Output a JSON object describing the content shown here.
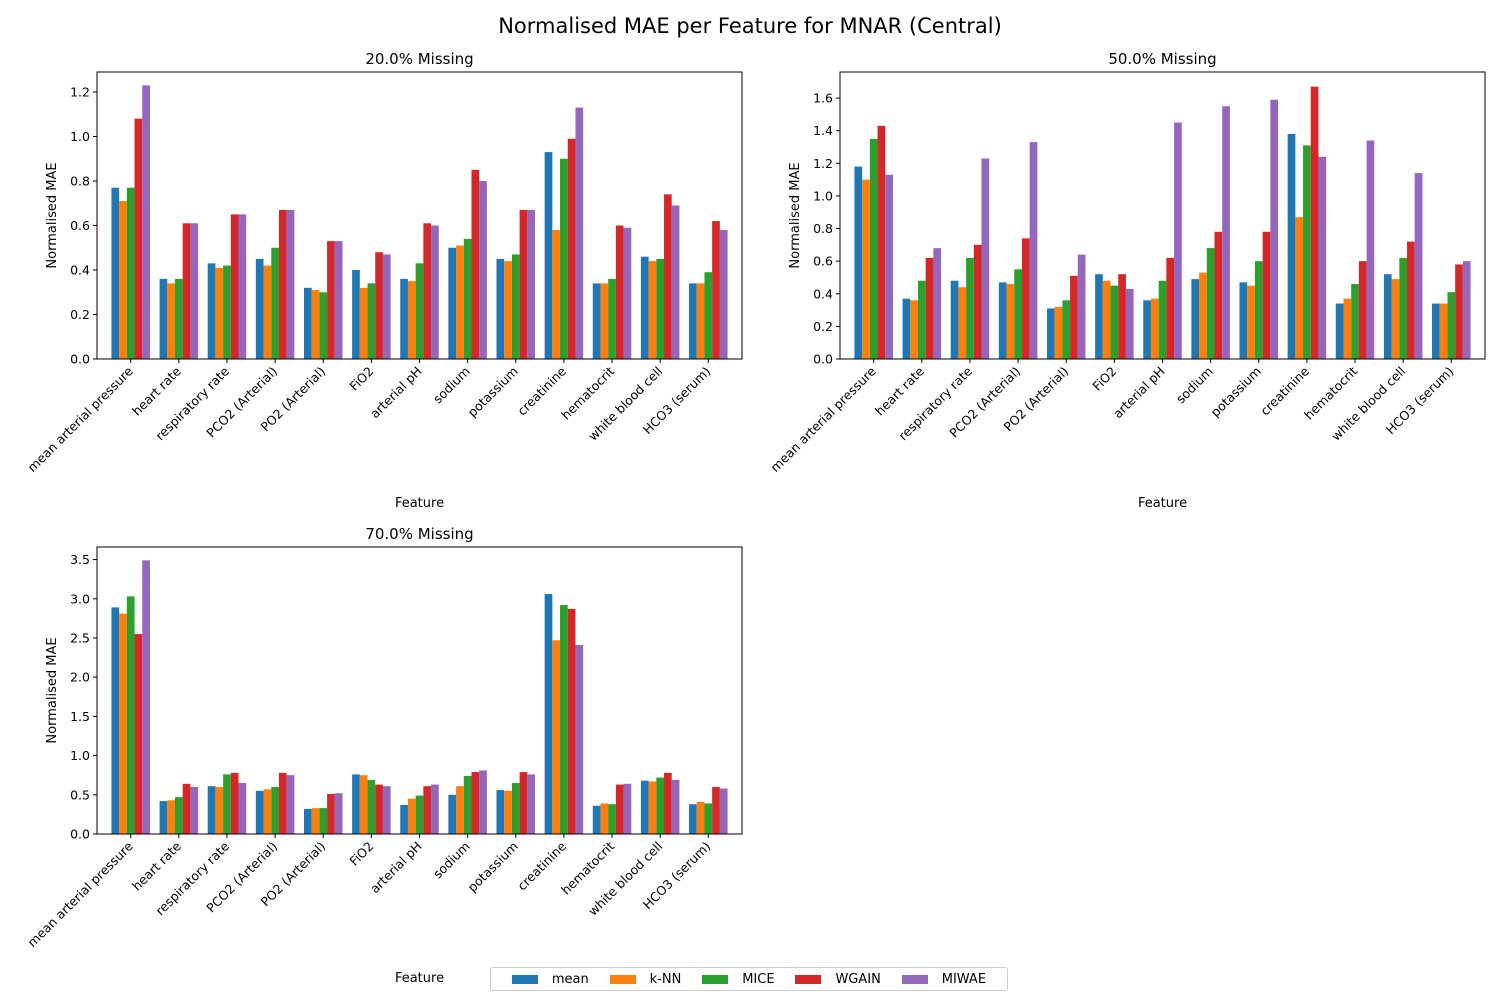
{
  "figure": {
    "title": "Normalised MAE per Feature for MNAR (Central)"
  },
  "colors": {
    "mean": "#1f77b4",
    "k-NN": "#ff7f0e",
    "MICE": "#2ca02c",
    "WGAIN": "#d62728",
    "MIWAE": "#9467bd"
  },
  "legend": [
    "mean",
    "k-NN",
    "MICE",
    "WGAIN",
    "MIWAE"
  ],
  "chart_data": [
    {
      "type": "bar",
      "title": "20.0% Missing",
      "xlabel": "Feature",
      "ylabel": "Normalised MAE",
      "ylim": [
        0,
        1.29
      ],
      "yticks": [
        0.0,
        0.2,
        0.4,
        0.6,
        0.8,
        1.0,
        1.2
      ],
      "categories": [
        "mean arterial pressure",
        "heart rate",
        "respiratory rate",
        "PCO2 (Arterial)",
        "PO2 (Arterial)",
        "FiO2",
        "arterial pH",
        "sodium",
        "potassium",
        "creatinine",
        "hematocrit",
        "white blood cell",
        "HCO3 (serum)"
      ],
      "series": [
        {
          "name": "mean",
          "values": [
            0.77,
            0.36,
            0.43,
            0.45,
            0.32,
            0.4,
            0.36,
            0.5,
            0.45,
            0.93,
            0.34,
            0.46,
            0.34
          ]
        },
        {
          "name": "k-NN",
          "values": [
            0.71,
            0.34,
            0.41,
            0.42,
            0.31,
            0.32,
            0.35,
            0.51,
            0.44,
            0.58,
            0.34,
            0.44,
            0.34
          ]
        },
        {
          "name": "MICE",
          "values": [
            0.77,
            0.36,
            0.42,
            0.5,
            0.3,
            0.34,
            0.43,
            0.54,
            0.47,
            0.9,
            0.36,
            0.45,
            0.39
          ]
        },
        {
          "name": "WGAIN",
          "values": [
            1.08,
            0.61,
            0.65,
            0.67,
            0.53,
            0.48,
            0.61,
            0.85,
            0.67,
            0.99,
            0.6,
            0.74,
            0.62
          ]
        },
        {
          "name": "MIWAE",
          "values": [
            1.23,
            0.61,
            0.65,
            0.67,
            0.53,
            0.47,
            0.6,
            0.8,
            0.67,
            1.13,
            0.59,
            0.69,
            0.58
          ]
        }
      ]
    },
    {
      "type": "bar",
      "title": "50.0% Missing",
      "xlabel": "Feature",
      "ylabel": "Normalised MAE",
      "ylim": [
        0,
        1.76
      ],
      "yticks": [
        0.0,
        0.2,
        0.4,
        0.6,
        0.8,
        1.0,
        1.2,
        1.4,
        1.6
      ],
      "categories": [
        "mean arterial pressure",
        "heart rate",
        "respiratory rate",
        "PCO2 (Arterial)",
        "PO2 (Arterial)",
        "FiO2",
        "arterial pH",
        "sodium",
        "potassium",
        "creatinine",
        "hematocrit",
        "white blood cell",
        "HCO3 (serum)"
      ],
      "series": [
        {
          "name": "mean",
          "values": [
            1.18,
            0.37,
            0.48,
            0.47,
            0.31,
            0.52,
            0.36,
            0.49,
            0.47,
            1.38,
            0.34,
            0.52,
            0.34
          ]
        },
        {
          "name": "k-NN",
          "values": [
            1.1,
            0.36,
            0.44,
            0.46,
            0.32,
            0.48,
            0.37,
            0.53,
            0.45,
            0.87,
            0.37,
            0.49,
            0.34
          ]
        },
        {
          "name": "MICE",
          "values": [
            1.35,
            0.48,
            0.62,
            0.55,
            0.36,
            0.45,
            0.48,
            0.68,
            0.6,
            1.31,
            0.46,
            0.62,
            0.41
          ]
        },
        {
          "name": "WGAIN",
          "values": [
            1.43,
            0.62,
            0.7,
            0.74,
            0.51,
            0.52,
            0.62,
            0.78,
            0.78,
            1.67,
            0.6,
            0.72,
            0.58
          ]
        },
        {
          "name": "MIWAE",
          "values": [
            1.13,
            0.68,
            1.23,
            1.33,
            0.64,
            0.43,
            1.45,
            1.55,
            1.59,
            1.24,
            1.34,
            1.14,
            0.6
          ]
        }
      ]
    },
    {
      "type": "bar",
      "title": "70.0% Missing",
      "xlabel": "Feature",
      "ylabel": "Normalised MAE",
      "ylim": [
        0,
        3.66
      ],
      "yticks": [
        0.0,
        0.5,
        1.0,
        1.5,
        2.0,
        2.5,
        3.0,
        3.5
      ],
      "categories": [
        "mean arterial pressure",
        "heart rate",
        "respiratory rate",
        "PCO2 (Arterial)",
        "PO2 (Arterial)",
        "FiO2",
        "arterial pH",
        "sodium",
        "potassium",
        "creatinine",
        "hematocrit",
        "white blood cell",
        "HCO3 (serum)"
      ],
      "series": [
        {
          "name": "mean",
          "values": [
            2.89,
            0.42,
            0.61,
            0.55,
            0.32,
            0.76,
            0.37,
            0.5,
            0.56,
            3.06,
            0.36,
            0.68,
            0.38
          ]
        },
        {
          "name": "k-NN",
          "values": [
            2.81,
            0.43,
            0.6,
            0.57,
            0.33,
            0.75,
            0.45,
            0.61,
            0.55,
            2.47,
            0.39,
            0.67,
            0.41
          ]
        },
        {
          "name": "MICE",
          "values": [
            3.03,
            0.47,
            0.76,
            0.6,
            0.33,
            0.69,
            0.49,
            0.74,
            0.65,
            2.92,
            0.38,
            0.72,
            0.39
          ]
        },
        {
          "name": "WGAIN",
          "values": [
            2.55,
            0.64,
            0.78,
            0.78,
            0.51,
            0.63,
            0.61,
            0.79,
            0.79,
            2.87,
            0.63,
            0.78,
            0.6
          ]
        },
        {
          "name": "MIWAE",
          "values": [
            3.49,
            0.6,
            0.65,
            0.75,
            0.52,
            0.61,
            0.63,
            0.81,
            0.76,
            2.41,
            0.64,
            0.69,
            0.58
          ]
        }
      ]
    }
  ]
}
